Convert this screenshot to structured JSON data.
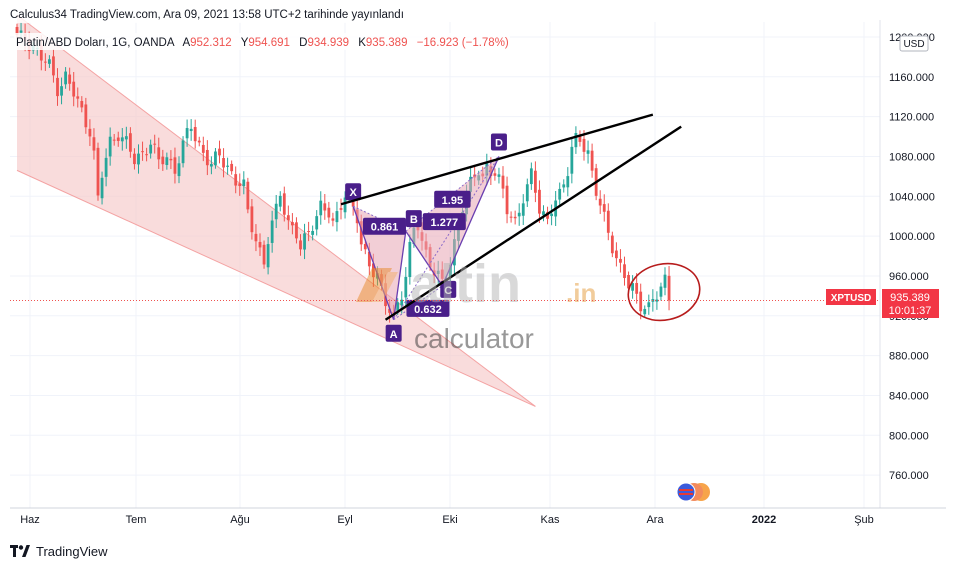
{
  "header": {
    "publisher_line": "Calculus34 TradingView.com, Ara 09, 2021 13:58 UTC+2 tarihinde yayınlandı",
    "instrument": "Platin/ABD Doları, 1G, OANDA",
    "ohlc": {
      "A_label": "A",
      "A": "952.312",
      "Y_label": "Y",
      "Y": "954.691",
      "D_label": "D",
      "D": "934.939",
      "K_label": "K",
      "K": "935.389",
      "change": "−16.923 (−1.78%)"
    }
  },
  "price_axis": {
    "currency": "USD",
    "badge_symbol": "XPTUSD",
    "badge_price": "935.389",
    "badge_time": "10:01:37"
  },
  "watermark": {
    "brand_main": "altin",
    "brand_tld": ".in",
    "brand_sub": "calculator"
  },
  "pattern_labels": {
    "X": "X",
    "A": "A",
    "B": "B",
    "C": "C",
    "D": "D",
    "r_xab": "0.861",
    "r_abc": "0.632",
    "r_bcd": "1.95",
    "r_xad": "1.277"
  },
  "footer": {
    "brand": "TradingView"
  },
  "colors": {
    "up": "#26a69a",
    "down": "#ef5350",
    "pattern": "#4a1f8a",
    "wedge_fill": "#f6c9c9",
    "badge": "#f23645"
  },
  "chart_data": {
    "type": "candlestick",
    "symbol": "XPTUSD",
    "x_ticks": [
      "Haz",
      "Tem",
      "Ağu",
      "Eyl",
      "Eki",
      "Kas",
      "Ara",
      "2022",
      "Şub"
    ],
    "y_ticks": [
      760,
      800,
      840,
      880,
      920,
      960,
      1000,
      1040,
      1080,
      1120,
      1160,
      1200
    ],
    "ylim": [
      727,
      1215
    ],
    "last_price": 935.389,
    "close_path": [
      [
        2,
        1198
      ],
      [
        4,
        1192
      ],
      [
        6,
        1178
      ],
      [
        8,
        1170
      ],
      [
        10,
        1150
      ],
      [
        12,
        1160
      ],
      [
        14,
        1142
      ],
      [
        16,
        1125
      ],
      [
        18,
        1108
      ],
      [
        19,
        1082
      ],
      [
        20,
        1035
      ],
      [
        21,
        1060
      ],
      [
        22,
        1078
      ],
      [
        23,
        1095
      ],
      [
        25,
        1105
      ],
      [
        27,
        1092
      ],
      [
        29,
        1075
      ],
      [
        31,
        1085
      ],
      [
        33,
        1095
      ],
      [
        35,
        1072
      ],
      [
        37,
        1080
      ],
      [
        39,
        1068
      ],
      [
        41,
        1090
      ],
      [
        43,
        1110
      ],
      [
        44,
        1100
      ],
      [
        46,
        1085
      ],
      [
        48,
        1070
      ],
      [
        50,
        1080
      ],
      [
        52,
        1072
      ],
      [
        54,
        1055
      ],
      [
        56,
        1048
      ],
      [
        57,
        1022
      ],
      [
        59,
        1000
      ],
      [
        61,
        972
      ],
      [
        62,
        995
      ],
      [
        64,
        1025
      ],
      [
        65,
        1045
      ],
      [
        67,
        1015
      ],
      [
        69,
        1000
      ],
      [
        70,
        985
      ],
      [
        72,
        1005
      ],
      [
        73,
        1015
      ],
      [
        75,
        1030
      ],
      [
        77,
        1020
      ],
      [
        78,
        1010
      ],
      [
        80,
        1035
      ],
      [
        81,
        1045
      ],
      [
        82,
        1035
      ],
      [
        84,
        1015
      ],
      [
        85,
        990
      ],
      [
        87,
        975
      ],
      [
        89,
        960
      ],
      [
        90,
        942
      ],
      [
        91,
        930
      ],
      [
        93,
        920
      ],
      [
        94,
        935
      ],
      [
        95,
        945
      ],
      [
        96,
        960
      ],
      [
        97,
        985
      ],
      [
        98,
        1005
      ],
      [
        99,
        1010
      ],
      [
        100,
        995
      ],
      [
        101,
        985
      ],
      [
        102,
        975
      ],
      [
        103,
        965
      ],
      [
        105,
        950
      ],
      [
        106,
        960
      ],
      [
        107,
        975
      ],
      [
        108,
        995
      ],
      [
        109,
        1015
      ],
      [
        110,
        1030
      ],
      [
        112,
        1050
      ],
      [
        113,
        1060
      ],
      [
        114,
        1068
      ],
      [
        115,
        1060
      ],
      [
        116,
        1072
      ],
      [
        117,
        1065
      ],
      [
        118,
        1060
      ],
      [
        120,
        1045
      ],
      [
        121,
        1030
      ],
      [
        123,
        1015
      ],
      [
        124,
        1025
      ],
      [
        126,
        1045
      ],
      [
        127,
        1062
      ],
      [
        128,
        1050
      ],
      [
        129,
        1030
      ],
      [
        131,
        1015
      ],
      [
        132,
        1025
      ],
      [
        134,
        1040
      ],
      [
        135,
        1055
      ],
      [
        136,
        1070
      ],
      [
        137,
        1090
      ],
      [
        138,
        1098
      ],
      [
        139,
        1095
      ],
      [
        140,
        1085
      ],
      [
        141,
        1080
      ],
      [
        142,
        1065
      ],
      [
        143,
        1050
      ],
      [
        144,
        1035
      ],
      [
        145,
        1018
      ],
      [
        146,
        1000
      ],
      [
        147,
        985
      ],
      [
        148,
        975
      ],
      [
        150,
        965
      ],
      [
        151,
        955
      ],
      [
        152,
        948
      ],
      [
        153,
        935
      ],
      [
        154,
        926
      ],
      [
        156,
        930
      ],
      [
        157,
        940
      ],
      [
        158,
        945
      ],
      [
        159,
        948
      ],
      [
        160,
        952
      ],
      [
        161,
        935
      ]
    ],
    "wedge_lines": [
      {
        "label": "upper",
        "from": [
          80,
          1032
        ],
        "to": [
          157,
          1122
        ]
      },
      {
        "label": "lower",
        "from": [
          91,
          916
        ],
        "to": [
          164,
          1110
        ]
      }
    ],
    "channel": {
      "upper": [
        [
          0,
          1222
        ],
        [
          128,
          829
        ]
      ],
      "lower": [
        [
          0,
          1066
        ],
        [
          128,
          829
        ]
      ]
    },
    "harmonic_pattern": {
      "points": {
        "X": [
          83,
          1030
        ],
        "A": [
          93,
          916
        ],
        "B": [
          96,
          1005
        ],
        "C": [
          105,
          950
        ],
        "D": [
          119,
          1080
        ]
      },
      "ratios": {
        "XAB": "0.861",
        "ABC": "0.632",
        "BCD": "1.95",
        "XAD": "1.277"
      }
    }
  }
}
